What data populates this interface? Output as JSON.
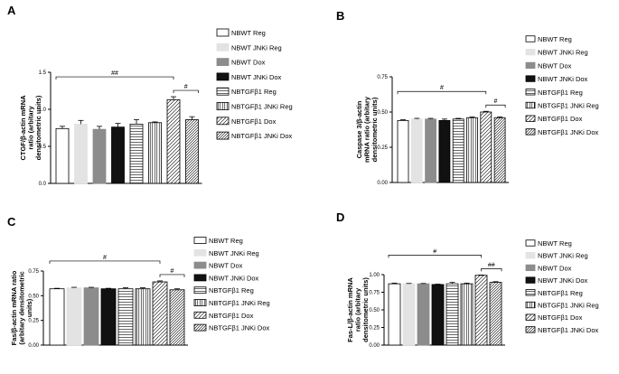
{
  "legend_labels": [
    "NBWT Reg",
    "NBWT JNKi Reg",
    "NBWT Dox",
    "NBWT JNKi Dox",
    "NBTGFβ1 Reg",
    "NBTGFβ1 JNKi Reg",
    "NBTGFβ1 Dox",
    "NBTGFβ1 JNKi Dox"
  ],
  "colors": {
    "axis": "#000000",
    "white": "#ffffff",
    "light_gray": "#e3e3e3",
    "gray": "#8c8c8c",
    "black": "#111111"
  },
  "chart_data": [
    {
      "panel": "A",
      "type": "bar",
      "ylabel": [
        "CTGF/β-actin mRNA",
        "ratio (arbitary",
        "densitometric units)"
      ],
      "ylim": [
        0,
        1.5
      ],
      "yticks": [
        "0.0",
        "0.5",
        "1.0",
        "1.5"
      ],
      "ytick_values": [
        0,
        0.5,
        1.0,
        1.5
      ],
      "values": [
        0.74,
        0.8,
        0.73,
        0.76,
        0.8,
        0.82,
        1.13,
        0.86
      ],
      "errors": [
        0.03,
        0.05,
        0.04,
        0.05,
        0.06,
        0.01,
        0.04,
        0.04
      ],
      "annotations": [
        {
          "text": "##",
          "from": 0,
          "to": 6
        },
        {
          "text": "#",
          "from": 6,
          "to": 7
        }
      ]
    },
    {
      "panel": "B",
      "type": "bar",
      "ylabel": [
        "Caspase 3/β-actin",
        "mRNA ratio (arbitary",
        "densitometric units)"
      ],
      "ylim": [
        0,
        0.75
      ],
      "yticks": [
        "0.00",
        "0.25",
        "0.50",
        "0.75"
      ],
      "ytick_values": [
        0,
        0.25,
        0.5,
        0.75
      ],
      "values": [
        0.44,
        0.45,
        0.45,
        0.44,
        0.45,
        0.46,
        0.5,
        0.46
      ],
      "errors": [
        0.005,
        0.005,
        0.005,
        0.01,
        0.005,
        0.005,
        0.005,
        0.005
      ],
      "annotations": [
        {
          "text": "#",
          "from": 0,
          "to": 6
        },
        {
          "text": "#",
          "from": 6,
          "to": 7
        }
      ]
    },
    {
      "panel": "C",
      "type": "bar",
      "ylabel": [
        "Fas/β-actin mRNA ratio",
        "(arbitary densitometric",
        "units)"
      ],
      "ylim": [
        0,
        0.75
      ],
      "yticks": [
        "0.00",
        "0.25",
        "0.50",
        "0.75"
      ],
      "ytick_values": [
        0,
        0.25,
        0.5,
        0.75
      ],
      "values": [
        0.57,
        0.58,
        0.58,
        0.57,
        0.57,
        0.57,
        0.64,
        0.56
      ],
      "errors": [
        0.005,
        0.005,
        0.005,
        0.005,
        0.01,
        0.01,
        0.01,
        0.01
      ],
      "annotations": [
        {
          "text": "#",
          "from": 0,
          "to": 6
        },
        {
          "text": "#",
          "from": 6,
          "to": 7
        }
      ]
    },
    {
      "panel": "D",
      "type": "bar",
      "ylabel": [
        "Fas-L/β-actin mRNA",
        "ratio (arbitary",
        "densitometric units)"
      ],
      "ylim": [
        0,
        1.0
      ],
      "yticks": [
        "0.00",
        "0.25",
        "0.50",
        "0.75",
        "1.00"
      ],
      "ytick_values": [
        0,
        0.25,
        0.5,
        0.75,
        1.0
      ],
      "values": [
        0.87,
        0.87,
        0.87,
        0.86,
        0.87,
        0.87,
        0.99,
        0.89
      ],
      "errors": [
        0.01,
        0.005,
        0.005,
        0.005,
        0.02,
        0.01,
        0.005,
        0.01
      ],
      "annotations": [
        {
          "text": "#",
          "from": 0,
          "to": 6
        },
        {
          "text": "##",
          "from": 6,
          "to": 7
        }
      ]
    }
  ]
}
